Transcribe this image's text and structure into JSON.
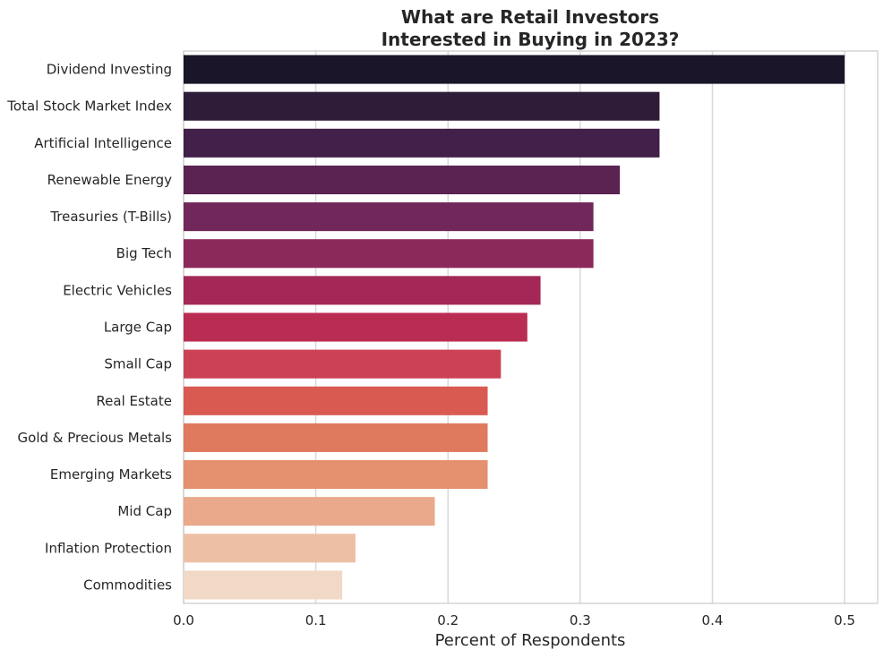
{
  "chart_data": {
    "type": "bar",
    "orientation": "horizontal",
    "title": [
      "What are Retail Investors",
      "Interested in Buying in 2023?"
    ],
    "xlabel": "Percent of Respondents",
    "ylabel": "",
    "xlim": [
      0,
      0.525
    ],
    "xticks": [
      0.0,
      0.1,
      0.2,
      0.3,
      0.4,
      0.5
    ],
    "xtick_labels": [
      "0.0",
      "0.1",
      "0.2",
      "0.3",
      "0.4",
      "0.5"
    ],
    "grid": "vertical",
    "categories": [
      "Dividend Investing",
      "Total Stock Market Index",
      "Artificial Intelligence",
      "Renewable Energy",
      "Treasuries (T-Bills)",
      "Big Tech",
      "Electric Vehicles",
      "Large Cap",
      "Small Cap",
      "Real Estate",
      "Gold & Precious Metals",
      "Emerging Markets",
      "Mid Cap",
      "Inflation Protection",
      "Commodities"
    ],
    "values": [
      0.5,
      0.36,
      0.36,
      0.33,
      0.31,
      0.31,
      0.27,
      0.26,
      0.24,
      0.23,
      0.23,
      0.23,
      0.19,
      0.13,
      0.12
    ],
    "colors": [
      "#1a1528",
      "#2f1c38",
      "#41204a",
      "#5a2350",
      "#712759",
      "#8a295a",
      "#a32858",
      "#ba2d52",
      "#cb4257",
      "#d95a50",
      "#e07a5e",
      "#e5906f",
      "#e9a98a",
      "#edc0a5",
      "#f2d8c6"
    ]
  }
}
